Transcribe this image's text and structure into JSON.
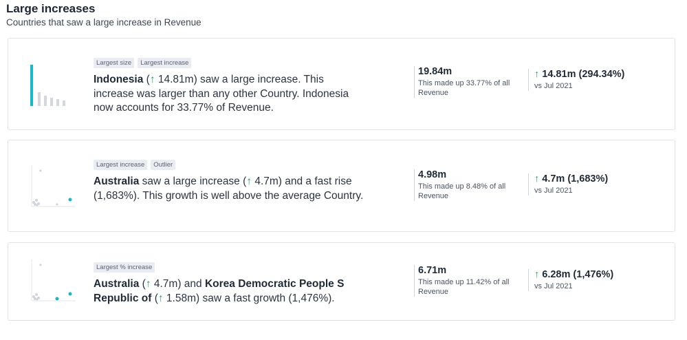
{
  "header": {
    "title": "Large increases",
    "subtitle": "Countries that saw a large increase in Revenue"
  },
  "colors": {
    "accent": "#14b8c8",
    "up_arrow": "#1fa55a",
    "muted": "#d3d8e0"
  },
  "icons": {
    "up_arrow": "↑"
  },
  "cards": [
    {
      "tags": [
        "Largest size",
        "Largest increase"
      ],
      "text": {
        "name": "Indonesia",
        "paren_open": " (",
        "arrow": "↑",
        "delta": " 14.81m",
        "rest": ") saw a large increase. This increase was larger than any other Country. Indonesia now accounts for 33.77% of Revenue."
      },
      "stat": {
        "value": "19.84m",
        "desc": "This made up 33.77% of all Revenue"
      },
      "change": {
        "arrow": "↑",
        "value": " 14.81m (294.34%)",
        "desc": "vs Jul 2021"
      }
    },
    {
      "tags": [
        "Largest increase",
        "Outlier"
      ],
      "text": {
        "name": "Australia",
        "mid": " saw a large increase (",
        "arrow": "↑",
        "delta": " 4.7m",
        "rest": ") and a fast rise (1,683%). This growth is well above the average Country."
      },
      "stat": {
        "value": "4.98m",
        "desc": "This made up 8.48% of all Revenue"
      },
      "change": {
        "arrow": "↑",
        "value": " 4.7m (1,683%)",
        "desc": "vs Jul 2021"
      }
    },
    {
      "tags": [
        "Largest % increase"
      ],
      "text": {
        "name1": "Australia",
        "p1": " (",
        "arrow1": "↑",
        "delta1": " 4.7m",
        "and": ") and ",
        "name2": "Korea Democratic People S Republic of",
        "p2": " (",
        "arrow2": "↑",
        "delta2": " 1.58m",
        "rest": ") saw a fast growth (1,476%)."
      },
      "stat": {
        "value": "6.71m",
        "desc": "This made up 11.42% of all Revenue"
      },
      "change": {
        "arrow": "↑",
        "value": " 6.28m (1,476%)",
        "desc": "vs Jul 2021"
      }
    }
  ]
}
